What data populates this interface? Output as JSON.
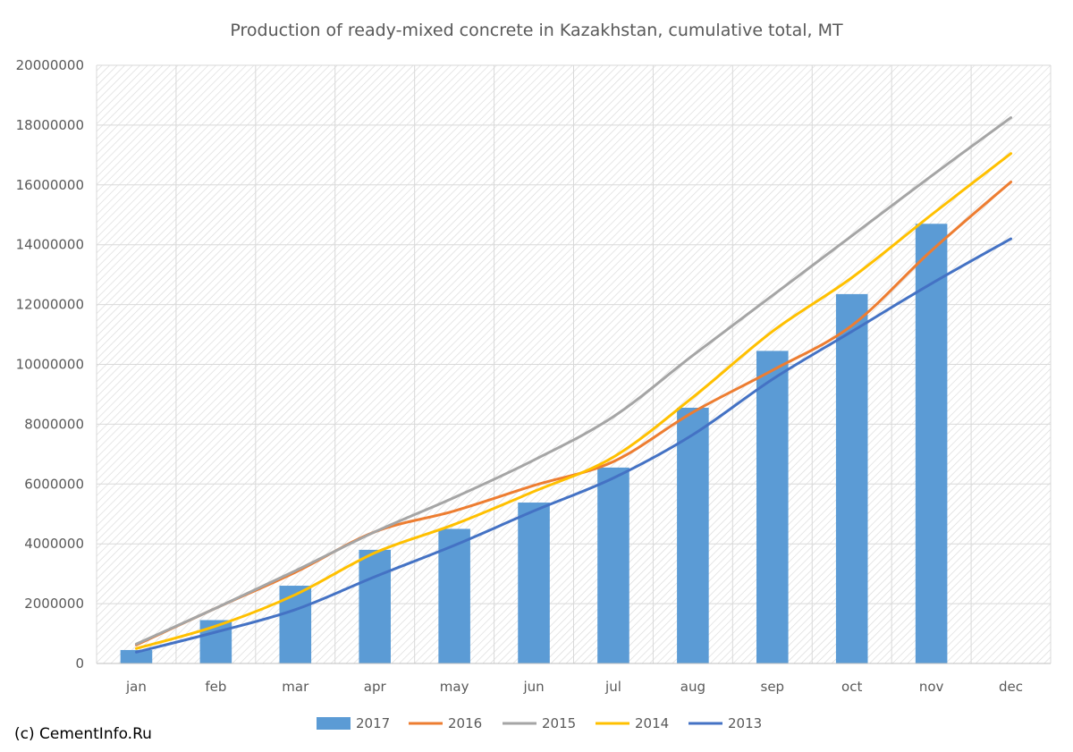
{
  "chart_data": {
    "type": "bar+line",
    "title": "Production of ready-mixed concrete in Kazakhstan, cumulative total, MT",
    "categories": [
      "jan",
      "feb",
      "mar",
      "apr",
      "may",
      "jun",
      "jul",
      "aug",
      "sep",
      "oct",
      "nov",
      "dec"
    ],
    "ylim": [
      0,
      20000000
    ],
    "yticks": [
      "0",
      "2000000",
      "4000000",
      "6000000",
      "8000000",
      "10000000",
      "12000000",
      "14000000",
      "16000000",
      "18000000",
      "20000000"
    ],
    "grid": true,
    "legend_position": "bottom",
    "bar_series": {
      "name": "2017",
      "color": "#5b9bd5",
      "values": [
        450000,
        1450000,
        2600000,
        3800000,
        4500000,
        5380000,
        6550000,
        8550000,
        10450000,
        12350000,
        14700000,
        null
      ]
    },
    "series": [
      {
        "name": "2016",
        "color": "#ed7d31",
        "values": [
          620000,
          1850000,
          3050000,
          4400000,
          5100000,
          5950000,
          6750000,
          8400000,
          9800000,
          11300000,
          13800000,
          16100000
        ]
      },
      {
        "name": "2015",
        "color": "#a5a5a5",
        "values": [
          650000,
          1850000,
          3100000,
          4400000,
          5550000,
          6800000,
          8250000,
          10300000,
          12300000,
          14300000,
          16300000,
          18250000
        ]
      },
      {
        "name": "2014",
        "color": "#ffc000",
        "values": [
          500000,
          1250000,
          2300000,
          3700000,
          4650000,
          5750000,
          6900000,
          8900000,
          11100000,
          12900000,
          15000000,
          17050000
        ]
      },
      {
        "name": "2013",
        "color": "#4472c4",
        "values": [
          380000,
          1050000,
          1800000,
          2900000,
          3950000,
          5100000,
          6200000,
          7650000,
          9500000,
          11100000,
          12700000,
          14200000
        ]
      }
    ]
  },
  "legend_order": [
    "2017",
    "2016",
    "2015",
    "2014",
    "2013"
  ],
  "credit": "(c) CementInfo.Ru"
}
